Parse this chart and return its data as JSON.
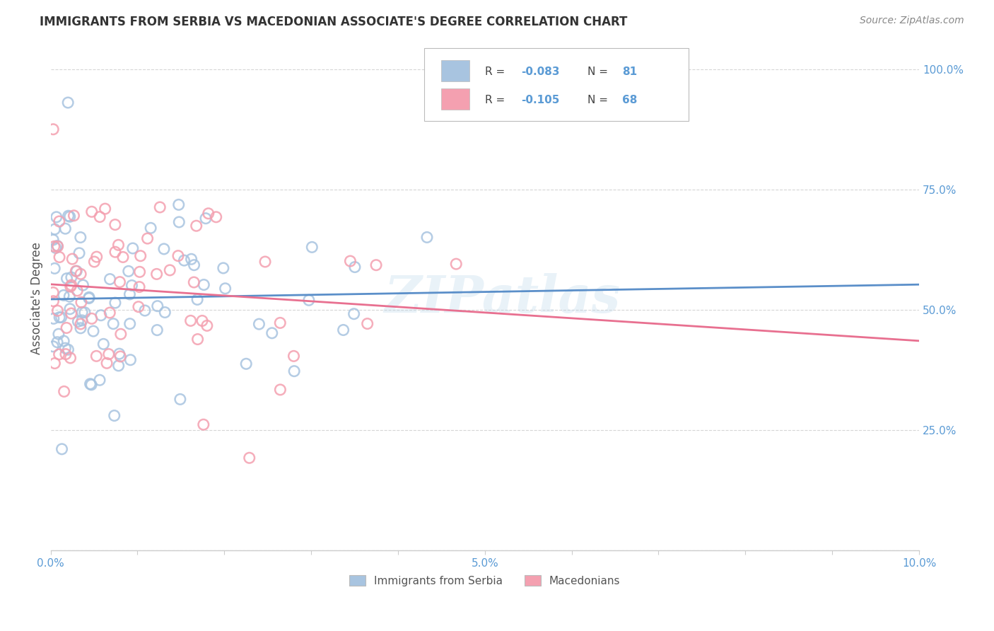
{
  "title": "IMMIGRANTS FROM SERBIA VS MACEDONIAN ASSOCIATE'S DEGREE CORRELATION CHART",
  "source_text": "Source: ZipAtlas.com",
  "ylabel": "Associate's Degree",
  "xlim": [
    0.0,
    0.1
  ],
  "ylim": [
    0.0,
    1.05
  ],
  "xtick_positions": [
    0.0,
    0.01,
    0.02,
    0.03,
    0.04,
    0.05,
    0.06,
    0.07,
    0.08,
    0.09,
    0.1
  ],
  "xtick_labels": [
    "0.0%",
    "",
    "",
    "",
    "",
    "5.0%",
    "",
    "",
    "",
    "",
    "10.0%"
  ],
  "ytick_positions": [
    0.0,
    0.25,
    0.5,
    0.75,
    1.0
  ],
  "ytick_labels_right": [
    "",
    "25.0%",
    "50.0%",
    "75.0%",
    "100.0%"
  ],
  "color_serbia": "#a8c4e0",
  "color_macedonia": "#f4a0b0",
  "color_line_serbia": "#5b8fc9",
  "color_line_macedonia": "#e87090",
  "watermark": "ZIPatlas",
  "grid_color": "#cccccc",
  "title_color": "#333333",
  "source_color": "#888888",
  "tick_color": "#5b9bd5",
  "ylabel_color": "#555555",
  "legend_r1": "-0.083",
  "legend_n1": "81",
  "legend_r2": "-0.105",
  "legend_n2": "68",
  "serbia_seed": 42,
  "macedonia_seed": 99,
  "r_serbia": -0.083,
  "r_macedonia": -0.105,
  "n_serbia": 81,
  "n_macedonia": 68
}
